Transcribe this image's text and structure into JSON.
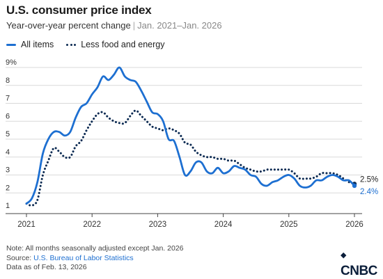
{
  "title": "U.S. consumer price index",
  "subtitle": "Year-over-year percent change",
  "subtitle_range": "Jan. 2021–Jan. 2026",
  "legend": {
    "all_items": "All items",
    "core": "Less food and energy"
  },
  "footer": {
    "note": "Note: All months seasonally adjusted except Jan. 2026",
    "source_label": "Source: ",
    "source_link": "U.S. Bureau of Labor Statistics",
    "data_as_of": "Data as of Feb. 13, 2026"
  },
  "logo": "CNBC",
  "colors": {
    "all_items": "#1d6fd1",
    "core": "#0b2a52",
    "grid": "#d9d9d9",
    "axis": "#444444",
    "label_all": "#1d6fd1",
    "label_core": "#222222"
  },
  "chart_data": {
    "type": "line",
    "x_start": "2021-01",
    "x_ticks": [
      "2021",
      "2022",
      "2023",
      "2024",
      "2025",
      "2026"
    ],
    "y_ticks": [
      "1",
      "2",
      "3",
      "4",
      "5",
      "6",
      "7",
      "8",
      "9%"
    ],
    "ylim": [
      1,
      9
    ],
    "grid": "horizontal",
    "series": [
      {
        "name": "All items",
        "style": "solid",
        "values": [
          1.4,
          1.7,
          2.6,
          4.2,
          5.0,
          5.4,
          5.4,
          5.2,
          5.4,
          6.2,
          6.8,
          7.0,
          7.5,
          7.9,
          8.5,
          8.3,
          8.6,
          9.0,
          8.5,
          8.3,
          8.2,
          7.7,
          7.1,
          6.5,
          6.4,
          6.0,
          5.0,
          4.9,
          4.0,
          3.0,
          3.2,
          3.7,
          3.7,
          3.2,
          3.1,
          3.4,
          3.1,
          3.2,
          3.5,
          3.4,
          3.3,
          3.0,
          2.9,
          2.5,
          2.4,
          2.6,
          2.7,
          2.9,
          3.0,
          2.8,
          2.4,
          2.3,
          2.4,
          2.7,
          2.7,
          2.9,
          3.0,
          2.9,
          2.7,
          2.7,
          2.4
        ],
        "end_label": "2.4%"
      },
      {
        "name": "Less food and energy",
        "style": "dotted",
        "values": [
          1.4,
          1.3,
          1.6,
          3.0,
          3.8,
          4.5,
          4.3,
          4.0,
          4.0,
          4.6,
          4.9,
          5.5,
          6.0,
          6.4,
          6.5,
          6.2,
          6.0,
          5.9,
          5.9,
          6.3,
          6.6,
          6.3,
          6.0,
          5.7,
          5.6,
          5.5,
          5.6,
          5.5,
          5.3,
          4.8,
          4.7,
          4.3,
          4.1,
          4.0,
          4.0,
          3.9,
          3.9,
          3.8,
          3.8,
          3.6,
          3.4,
          3.3,
          3.2,
          3.2,
          3.3,
          3.3,
          3.3,
          3.3,
          3.3,
          3.1,
          2.8,
          2.8,
          2.8,
          2.9,
          3.1,
          3.1,
          3.1,
          3.0,
          2.8,
          2.6,
          2.5
        ],
        "end_label": "2.5%"
      }
    ]
  }
}
